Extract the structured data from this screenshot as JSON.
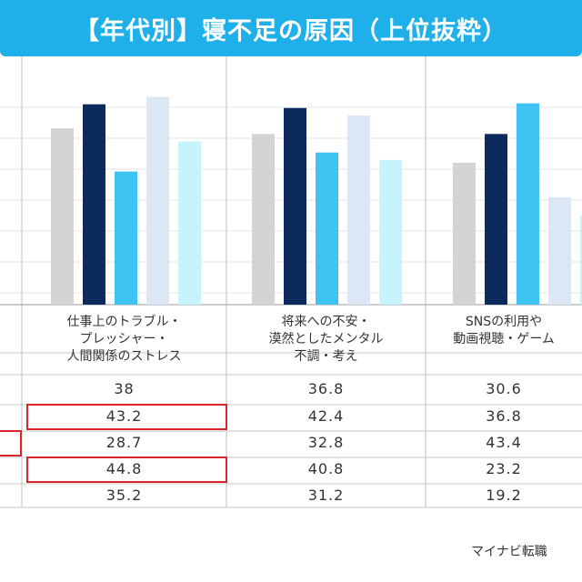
{
  "title": "【年代別】寝不足の原因（上位抜粋）",
  "source": "マイナビ転職",
  "colors": {
    "title_bg": "#1fb0ea",
    "highlight": "#d9262b",
    "series": [
      "#d4d4d4",
      "#0d2a5e",
      "#3ec3f3",
      "#dce7f5",
      "#c7f4fc"
    ]
  },
  "chart_data": {
    "type": "bar",
    "title": "【年代別】寝不足の原因（上位抜粋）",
    "categories": [
      "仕事上のトラブル・\nプレッシャー・\n人間関係のストレス",
      "将来への不安・\n漠然としたメンタル\n不調・考え",
      "SNSの利用や\n動画視聴・ゲーム"
    ],
    "series": [
      {
        "values": [
          38,
          36.8,
          30.6
        ]
      },
      {
        "values": [
          43.2,
          42.4,
          36.8
        ]
      },
      {
        "values": [
          28.7,
          32.8,
          43.4
        ]
      },
      {
        "values": [
          44.8,
          40.8,
          23.2
        ]
      },
      {
        "values": [
          35.2,
          31.2,
          19.2
        ]
      }
    ],
    "table_values": [
      [
        "38",
        "36.8",
        "30.6"
      ],
      [
        "43.2",
        "42.4",
        "36.8"
      ],
      [
        "28.7",
        "32.8",
        "43.4"
      ],
      [
        "44.8",
        "40.8",
        "23.2"
      ],
      [
        "35.2",
        "31.2",
        "19.2"
      ]
    ],
    "highlighted_cells": [
      {
        "row": 1,
        "col": 0
      },
      {
        "row": 3,
        "col": 0
      }
    ],
    "grid": true,
    "legend": "none"
  }
}
